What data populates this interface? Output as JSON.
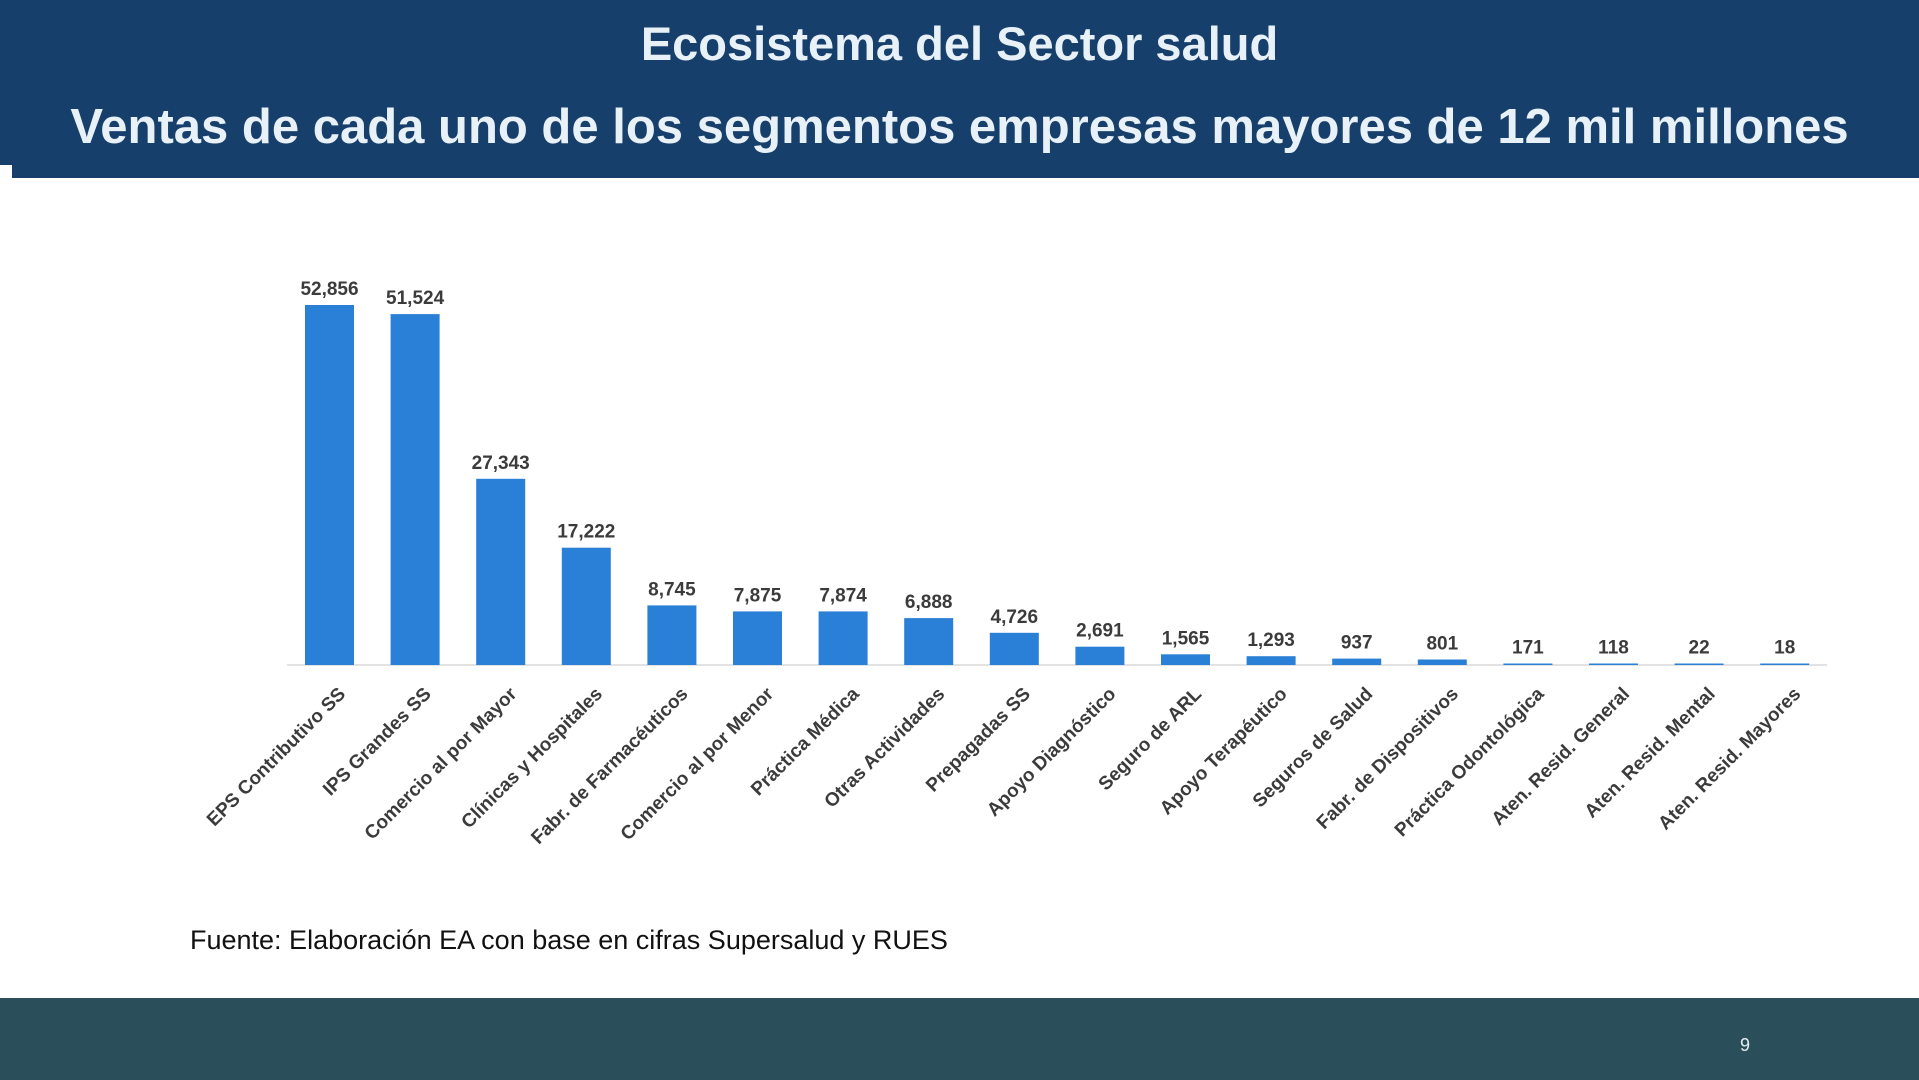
{
  "header": {
    "title": "Ecosistema del Sector salud",
    "subtitle": "Ventas de cada uno de los segmentos empresas mayores de 12 mil millones"
  },
  "chart_data": {
    "type": "bar",
    "title": "",
    "xlabel": "",
    "ylabel": "",
    "ylim": [
      0,
      60000
    ],
    "grid": false,
    "legend": "none",
    "bar_color": "#2a7fd6",
    "categories": [
      "EPS Contributivo SS",
      "IPS Grandes SS",
      "Comercio al por Mayor",
      "Clínicas y Hospitales",
      "Fabr. de Farmacéuticos",
      "Comercio al por Menor",
      "Práctica Médica",
      "Otras Actividades",
      "Prepagadas SS",
      "Apoyo Diagnóstico",
      "Seguro de ARL",
      "Apoyo Terapéutico",
      "Seguros de Salud",
      "Fabr. de Dispositivos",
      "Práctica Odontológica",
      "Aten. Resid. General",
      "Aten. Resid. Mental",
      "Aten. Resid. Mayores"
    ],
    "values": [
      52856,
      51524,
      27343,
      17222,
      8745,
      7875,
      7874,
      6888,
      4726,
      2691,
      1565,
      1293,
      937,
      801,
      171,
      118,
      22,
      18
    ],
    "value_labels": [
      "52,856",
      "51,524",
      "27,343",
      "17,222",
      "8,745",
      "7,875",
      "7,874",
      "6,888",
      "4,726",
      "2,691",
      "1,565",
      "1,293",
      "937",
      "801",
      "171",
      "118",
      "22",
      "18"
    ]
  },
  "source_note": "Fuente: Elaboración EA con base en cifras Supersalud y RUES",
  "footer": {
    "page_number": "9"
  }
}
